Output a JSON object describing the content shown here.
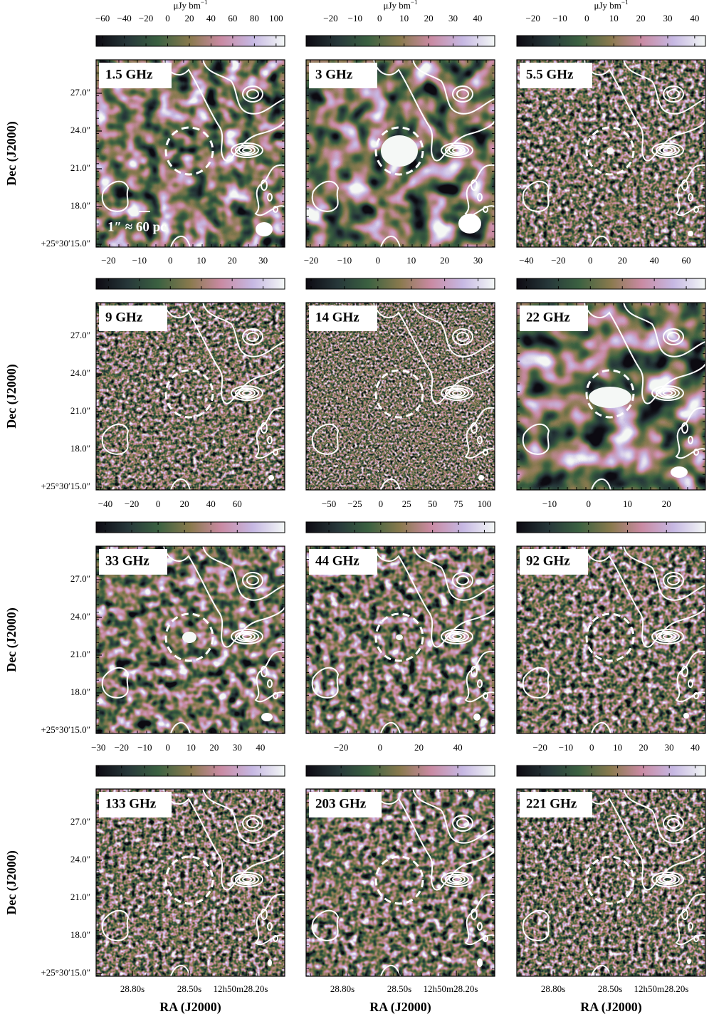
{
  "figure": {
    "colorbar_unit": "μJy bm",
    "colorbar_unit_exponent": "−1",
    "scale_bar": "1″ ≈ 60 pc",
    "y_axis": {
      "label": "Dec (J2000)",
      "ticks": [
        "27.0″",
        "24.0″",
        "21.0″",
        "18.0″",
        "+25°30′15.0″"
      ]
    },
    "x_axis": {
      "label": "RA (J2000)",
      "ticks": [
        "28.80s",
        "28.50s",
        "12h50m28.20s"
      ]
    },
    "panels": [
      {
        "label": "1.5 GHz",
        "colorbar": {
          "lim": [
            -66,
            108
          ],
          "ticks": [
            {
              "value": -60,
              "label": "−60"
            },
            {
              "value": -40,
              "label": "−40"
            },
            {
              "value": -20,
              "label": "−20"
            },
            0,
            20,
            40,
            60,
            80,
            100
          ]
        }
      },
      {
        "label": "3 GHz",
        "colorbar": {
          "lim": [
            -30,
            47
          ],
          "ticks": [
            {
              "value": -20,
              "label": "−20"
            },
            {
              "value": -10,
              "label": "−10"
            },
            0,
            10,
            20,
            30,
            40
          ]
        }
      },
      {
        "label": "5.5 GHz",
        "colorbar": {
          "lim": [
            -26,
            44
          ],
          "ticks": [
            {
              "value": -20,
              "label": "−20"
            },
            {
              "value": -10,
              "label": "−10"
            },
            0,
            10,
            20,
            30,
            40
          ]
        }
      },
      {
        "label": "9 GHz",
        "colorbar": {
          "lim": [
            -24,
            37
          ],
          "ticks": [
            {
              "value": -20,
              "label": "−20"
            },
            {
              "value": -10,
              "label": "−10"
            },
            0,
            10,
            20,
            30
          ]
        }
      },
      {
        "label": "14 GHz",
        "colorbar": {
          "lim": [
            -21.5,
            35
          ],
          "ticks": [
            {
              "value": -20,
              "label": "−20"
            },
            {
              "value": -10,
              "label": "−10"
            },
            0,
            10,
            20,
            30
          ]
        }
      },
      {
        "label": "22 GHz",
        "colorbar": {
          "lim": [
            -46,
            72
          ],
          "ticks": [
            {
              "value": -40,
              "label": "−40"
            },
            {
              "value": -20,
              "label": "−20"
            },
            0,
            20,
            40,
            60
          ]
        }
      },
      {
        "label": "33 GHz",
        "colorbar": {
          "lim": [
            -47,
            96
          ],
          "ticks": [
            {
              "value": -40,
              "label": "−40"
            },
            {
              "value": -20,
              "label": "−20"
            },
            0,
            20,
            40,
            60
          ]
        }
      },
      {
        "label": "44 GHz",
        "colorbar": {
          "lim": [
            -72,
            110
          ],
          "ticks": [
            {
              "value": -50,
              "label": "−50"
            },
            {
              "value": -25,
              "label": "−25"
            },
            0,
            25,
            50,
            75,
            100
          ]
        }
      },
      {
        "label": "92 GHz",
        "colorbar": {
          "lim": [
            -18.4,
            30
          ],
          "ticks": [
            {
              "value": -10,
              "label": "−10"
            },
            0,
            10,
            20
          ]
        }
      },
      {
        "label": "133 GHz",
        "colorbar": {
          "lim": [
            -31,
            50.5
          ],
          "ticks": [
            {
              "value": -30,
              "label": "−30"
            },
            {
              "value": -20,
              "label": "−20"
            },
            {
              "value": -10,
              "label": "−10"
            },
            0,
            10,
            20,
            30,
            40
          ]
        }
      },
      {
        "label": "203 GHz",
        "colorbar": {
          "lim": [
            -38,
            59
          ],
          "ticks": [
            {
              "value": -20,
              "label": "−20"
            },
            0,
            20,
            40
          ]
        }
      },
      {
        "label": "221 GHz",
        "colorbar": {
          "lim": [
            -29,
            44
          ],
          "ticks": [
            {
              "value": -20,
              "label": "−20"
            },
            {
              "value": -10,
              "label": "−10"
            },
            0,
            10,
            20,
            30,
            40
          ]
        }
      }
    ]
  }
}
